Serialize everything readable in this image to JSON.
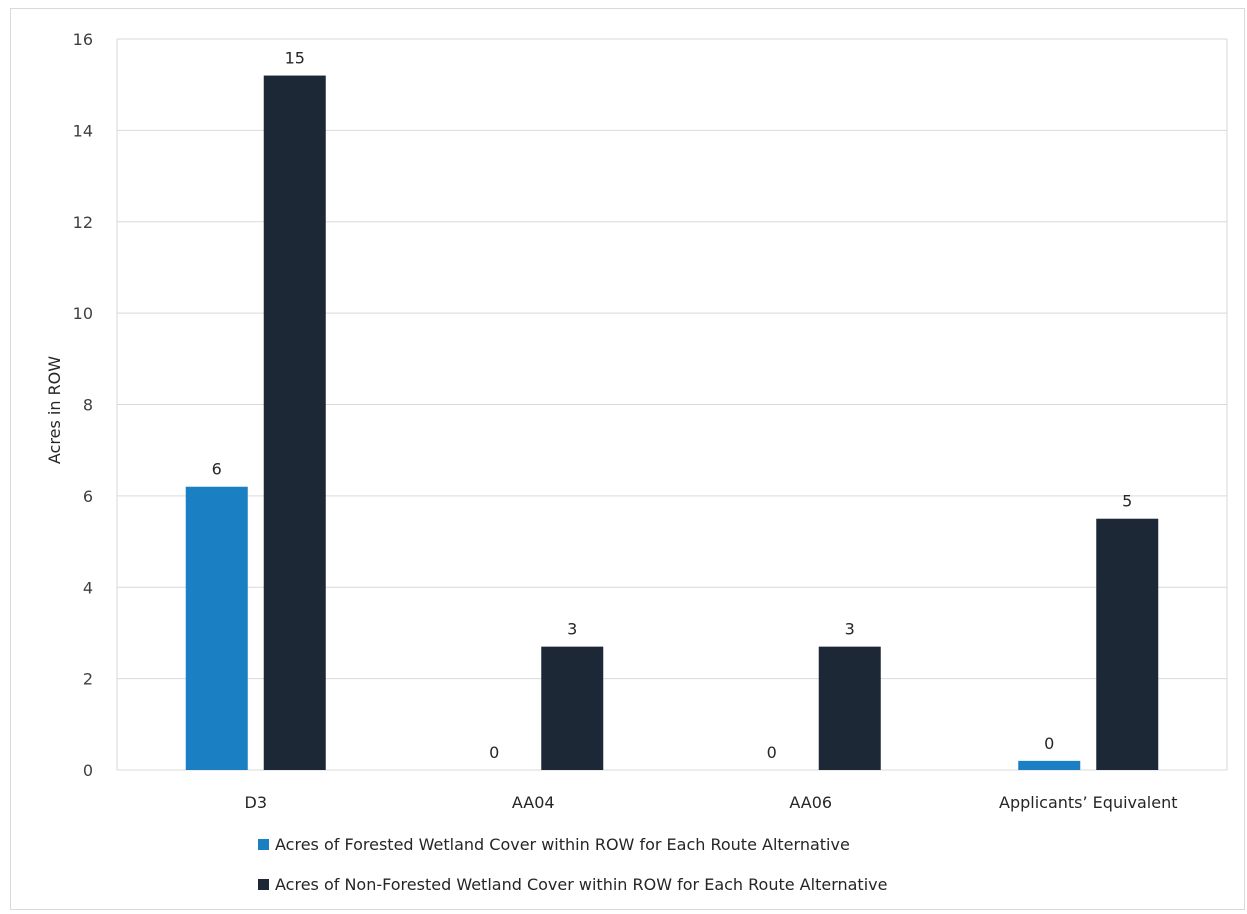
{
  "chart_data": {
    "type": "bar",
    "ylabel": "Acres in ROW",
    "xlabel": "",
    "ylim": [
      0,
      16
    ],
    "yticks": [
      0,
      2,
      4,
      6,
      8,
      10,
      12,
      14,
      16
    ],
    "grid": true,
    "legend_position": "bottom",
    "categories": [
      "D3",
      "AA04",
      "AA06",
      "Applicants’ Equivalent"
    ],
    "series": [
      {
        "name": "Acres of Forested Wetland Cover within ROW for Each Route Alternative",
        "color": "#1b7fc4",
        "values": [
          6.2,
          0,
          0,
          0.2
        ],
        "labels": [
          "6",
          "0",
          "0",
          "0"
        ]
      },
      {
        "name": "Acres of Non-Forested Wetland Cover within ROW for Each Route Alternative",
        "color": "#1c2836",
        "values": [
          15.2,
          2.7,
          2.7,
          5.5
        ],
        "labels": [
          "15",
          "3",
          "3",
          "5"
        ]
      }
    ]
  }
}
